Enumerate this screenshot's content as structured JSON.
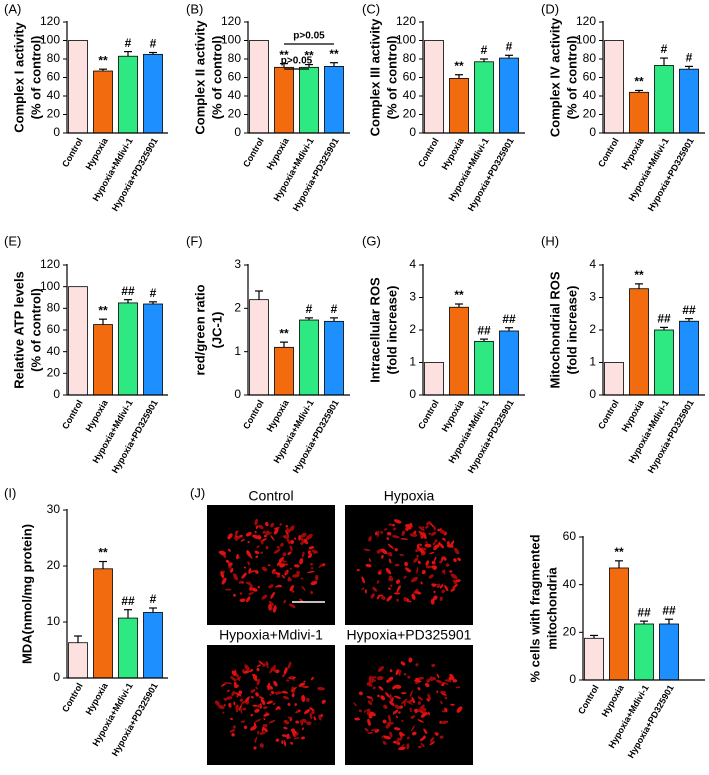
{
  "chart_data": [
    {
      "type": "bar",
      "panel": "(A)",
      "ylabel": [
        "Complex I activity",
        "(% of control)"
      ],
      "categories": [
        "Control",
        "Hypoxia",
        "Hypoxia+Mdivi-1",
        "Hypoxia+PD325901"
      ],
      "values": [
        100,
        67,
        83,
        85
      ],
      "errors": [
        null,
        2,
        5,
        2
      ],
      "annotations": [
        null,
        "**",
        "#",
        "#"
      ],
      "colors": [
        "#fde0e0",
        "#f36b0f",
        "#2ee882",
        "#1e8fff"
      ],
      "ylim": [
        0,
        120
      ],
      "yticks": [
        0,
        20,
        40,
        60,
        80,
        100,
        120
      ]
    },
    {
      "type": "bar",
      "panel": "(B)",
      "ylabel": [
        "Complex II activity",
        "(% of control)"
      ],
      "categories": [
        "Control",
        "Hypoxia",
        "Hypoxia+Mdivi-1",
        "Hypoxia+PD325901"
      ],
      "values": [
        100,
        71,
        71,
        72
      ],
      "errors": [
        null,
        4,
        3,
        4
      ],
      "annotations": [
        null,
        "**",
        "**",
        "**"
      ],
      "brackets": [
        "p>0.05",
        "p>0.05"
      ],
      "colors": [
        "#fde0e0",
        "#f36b0f",
        "#2ee882",
        "#1e8fff"
      ],
      "ylim": [
        0,
        120
      ],
      "yticks": [
        0,
        20,
        40,
        60,
        80,
        100,
        120
      ]
    },
    {
      "type": "bar",
      "panel": "(C)",
      "ylabel": [
        "Complex III activity",
        "(% of control)"
      ],
      "categories": [
        "Control",
        "Hypoxia",
        "Hypoxia+Mdivi-1",
        "Hypoxia+PD325901"
      ],
      "values": [
        100,
        59,
        77,
        81
      ],
      "errors": [
        null,
        4,
        3,
        3
      ],
      "annotations": [
        null,
        "**",
        "#",
        "#"
      ],
      "colors": [
        "#fde0e0",
        "#f36b0f",
        "#2ee882",
        "#1e8fff"
      ],
      "ylim": [
        0,
        120
      ],
      "yticks": [
        0,
        20,
        40,
        60,
        80,
        100,
        120
      ]
    },
    {
      "type": "bar",
      "panel": "(D)",
      "ylabel": [
        "Complex IV activity",
        "(% of control)"
      ],
      "categories": [
        "Control",
        "Hypoxia",
        "Hypoxia+Mdivi-1",
        "Hypoxia+PD325901"
      ],
      "values": [
        100,
        44,
        73,
        69
      ],
      "errors": [
        null,
        2,
        8,
        3
      ],
      "annotations": [
        null,
        "**",
        "#",
        "#"
      ],
      "colors": [
        "#fde0e0",
        "#f36b0f",
        "#2ee882",
        "#1e8fff"
      ],
      "ylim": [
        0,
        120
      ],
      "yticks": [
        0,
        20,
        40,
        60,
        80,
        100,
        120
      ]
    },
    {
      "type": "bar",
      "panel": "(E)",
      "ylabel": [
        "Relative ATP levels",
        "(% of control)"
      ],
      "categories": [
        "Control",
        "Hypoxia",
        "Hypoxia+Mdivi-1",
        "Hypoxia+PD325901"
      ],
      "values": [
        100,
        65,
        85,
        84
      ],
      "errors": [
        null,
        5,
        3,
        2
      ],
      "annotations": [
        null,
        "**",
        "##",
        "#"
      ],
      "colors": [
        "#fde0e0",
        "#f36b0f",
        "#2ee882",
        "#1e8fff"
      ],
      "ylim": [
        0,
        120
      ],
      "yticks": [
        0,
        20,
        40,
        60,
        80,
        100,
        120
      ]
    },
    {
      "type": "bar",
      "panel": "(F)",
      "ylabel": [
        "red/green ratio",
        "(JC-1)"
      ],
      "categories": [
        "Control",
        "Hypoxia",
        "Hypoxia+Mdivi-1",
        "Hypoxia+PD325901"
      ],
      "values": [
        2.2,
        1.1,
        1.73,
        1.7
      ],
      "errors": [
        0.2,
        0.12,
        0.05,
        0.08
      ],
      "annotations": [
        null,
        "**",
        "#",
        "#"
      ],
      "colors": [
        "#fde0e0",
        "#f36b0f",
        "#2ee882",
        "#1e8fff"
      ],
      "ylim": [
        0,
        3
      ],
      "yticks": [
        0,
        1,
        2,
        3
      ]
    },
    {
      "type": "bar",
      "panel": "(G)",
      "ylabel": [
        "Intracellular ROS",
        "(fold increase)"
      ],
      "categories": [
        "Control",
        "Hypoxia",
        "Hypoxia+Mdivi-1",
        "Hypoxia+PD325901"
      ],
      "values": [
        1.0,
        2.7,
        1.65,
        1.97
      ],
      "errors": [
        null,
        0.1,
        0.07,
        0.1
      ],
      "annotations": [
        null,
        "**",
        "##",
        "##"
      ],
      "colors": [
        "#fde0e0",
        "#f36b0f",
        "#2ee882",
        "#1e8fff"
      ],
      "ylim": [
        0,
        4
      ],
      "yticks": [
        0,
        1,
        2,
        3,
        4
      ]
    },
    {
      "type": "bar",
      "panel": "(H)",
      "ylabel": [
        "Mitochondrial ROS",
        "(fold increase)"
      ],
      "categories": [
        "Control",
        "Hypoxia",
        "Hypoxia+Mdivi-1",
        "Hypoxia+PD325901"
      ],
      "values": [
        1.0,
        3.27,
        2.0,
        2.27
      ],
      "errors": [
        null,
        0.15,
        0.08,
        0.08
      ],
      "annotations": [
        null,
        "**",
        "##",
        "##"
      ],
      "colors": [
        "#fde0e0",
        "#f36b0f",
        "#2ee882",
        "#1e8fff"
      ],
      "ylim": [
        0,
        4
      ],
      "yticks": [
        0,
        1,
        2,
        3,
        4
      ]
    },
    {
      "type": "bar",
      "panel": "(I)",
      "ylabel": [
        "MDA(nmol/mg protein)"
      ],
      "categories": [
        "Control",
        "Hypoxia",
        "Hypoxia+Mdivi-1",
        "Hypoxia+PD325901"
      ],
      "values": [
        6.3,
        19.5,
        10.7,
        11.7
      ],
      "errors": [
        1.2,
        1.3,
        1.5,
        0.8
      ],
      "annotations": [
        null,
        "**",
        "##",
        "#"
      ],
      "colors": [
        "#fde0e0",
        "#f36b0f",
        "#2ee882",
        "#1e8fff"
      ],
      "ylim": [
        0,
        30
      ],
      "yticks": [
        0,
        10,
        20,
        30
      ]
    },
    {
      "type": "bar",
      "ylabel": [
        "% cells with fragmented",
        "mitochondria"
      ],
      "categories": [
        "Control",
        "Hypoxia",
        "Hypoxia+Mdivi-1",
        "Hypoxia+PD325901"
      ],
      "values": [
        17.5,
        47,
        23.5,
        23.5
      ],
      "errors": [
        1.2,
        3,
        1.2,
        2
      ],
      "annotations": [
        null,
        "**",
        "##",
        "##"
      ],
      "colors": [
        "#fde0e0",
        "#f36b0f",
        "#2ee882",
        "#1e8fff"
      ],
      "ylim": [
        0,
        60
      ],
      "yticks": [
        0,
        20,
        40,
        60
      ]
    }
  ],
  "images": {
    "panel": "(J)",
    "labels": [
      "Control",
      "Hypoxia",
      "Hypoxia+Mdivi-1",
      "Hypoxia+PD325901"
    ]
  }
}
